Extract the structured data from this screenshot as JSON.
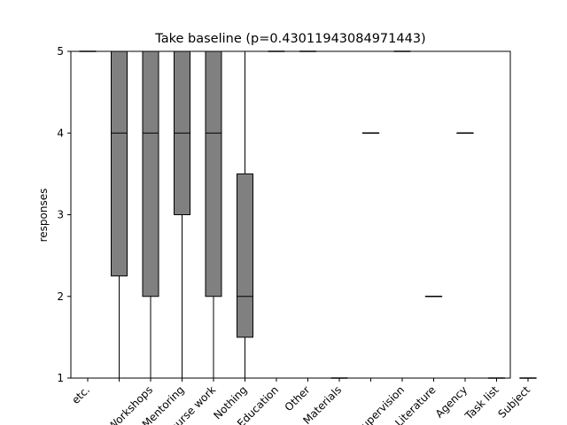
{
  "chart_data": {
    "type": "box",
    "title": "Take baseline (p=0.43011943084971443)",
    "xlabel": "",
    "ylabel": "responses",
    "ylim": [
      1,
      5
    ],
    "yticks": [
      1,
      2,
      3,
      4,
      5
    ],
    "grid": false,
    "box_color": "#808080",
    "line_color": "#000000",
    "categories": [
      "etc.",
      "",
      "Workshops",
      "Mentoring",
      "Course work",
      "Nothing",
      "Education",
      "Other",
      "Materials",
      "",
      "Supervision",
      "Literature",
      "Agency",
      "Task list",
      "Subject"
    ],
    "boxes": [
      {
        "whislo": 5,
        "q1": 5,
        "med": 5,
        "q3": 5,
        "whishi": 5
      },
      {
        "whislo": 1,
        "q1": 2.25,
        "med": 4,
        "q3": 5,
        "whishi": 5
      },
      {
        "whislo": 1,
        "q1": 2,
        "med": 4,
        "q3": 5,
        "whishi": 5
      },
      {
        "whislo": 1,
        "q1": 3,
        "med": 4,
        "q3": 5,
        "whishi": 5
      },
      {
        "whislo": 1,
        "q1": 2,
        "med": 4,
        "q3": 5,
        "whishi": 5
      },
      {
        "whislo": 1,
        "q1": 1.5,
        "med": 2,
        "q3": 3.5,
        "whishi": 5
      },
      {
        "whislo": 5,
        "q1": 5,
        "med": 5,
        "q3": 5,
        "whishi": 5
      },
      {
        "whislo": 5,
        "q1": 5,
        "med": 5,
        "q3": 5,
        "whishi": 5
      },
      {
        "whislo": 1,
        "q1": 1,
        "med": 1,
        "q3": 1,
        "whishi": 1
      },
      {
        "whislo": 4,
        "q1": 4,
        "med": 4,
        "q3": 4,
        "whishi": 4
      },
      {
        "whislo": 5,
        "q1": 5,
        "med": 5,
        "q3": 5,
        "whishi": 5
      },
      {
        "whislo": 2,
        "q1": 2,
        "med": 2,
        "q3": 2,
        "whishi": 2
      },
      {
        "whislo": 4,
        "q1": 4,
        "med": 4,
        "q3": 4,
        "whishi": 4
      },
      {
        "whislo": 1,
        "q1": 1,
        "med": 1,
        "q3": 1,
        "whishi": 1
      },
      {
        "whislo": 1,
        "q1": 1,
        "med": 1,
        "q3": 1,
        "whishi": 1
      }
    ]
  }
}
